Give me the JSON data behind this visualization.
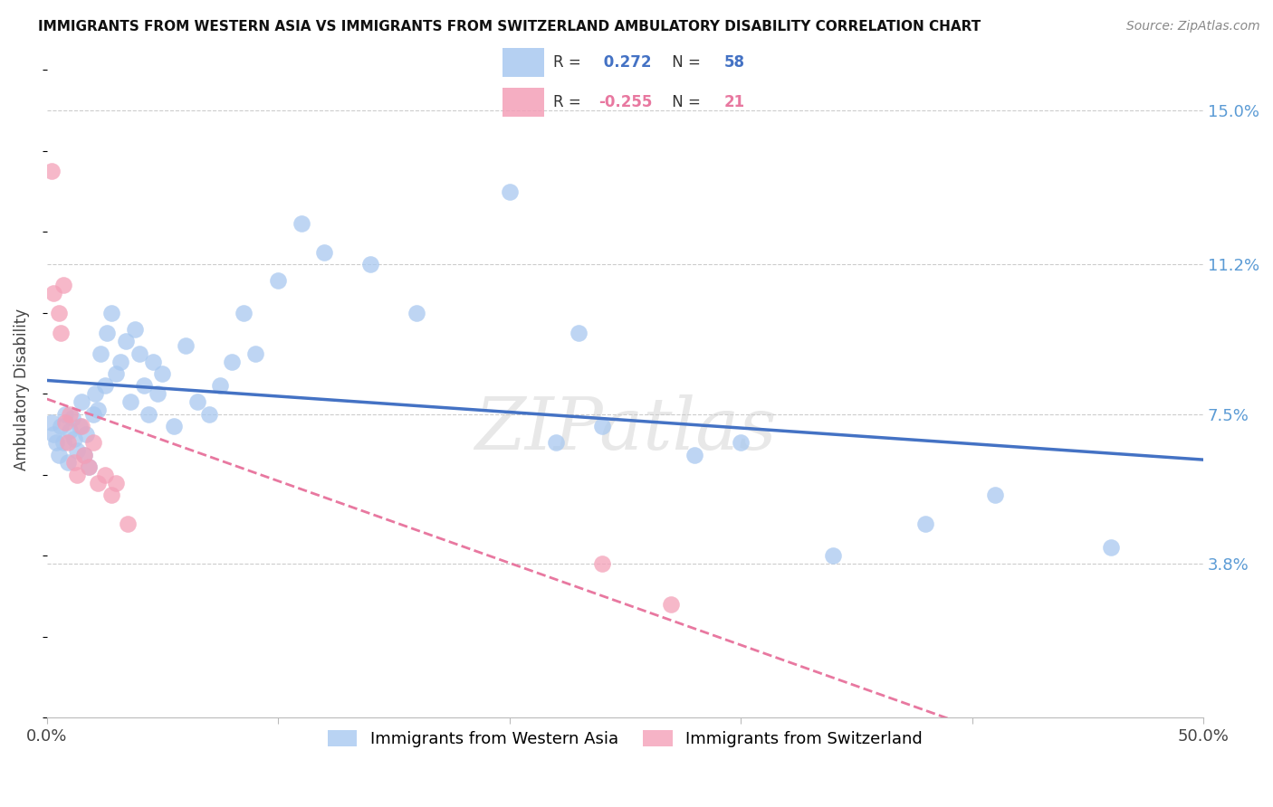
{
  "title": "IMMIGRANTS FROM WESTERN ASIA VS IMMIGRANTS FROM SWITZERLAND AMBULATORY DISABILITY CORRELATION CHART",
  "source": "Source: ZipAtlas.com",
  "ylabel": "Ambulatory Disability",
  "yticks": [
    0.038,
    0.075,
    0.112,
    0.15
  ],
  "ytick_labels": [
    "3.8%",
    "7.5%",
    "11.2%",
    "15.0%"
  ],
  "xmin": 0.0,
  "xmax": 0.5,
  "ymin": 0.0,
  "ymax": 0.162,
  "r_blue": 0.272,
  "n_blue": 58,
  "r_pink": -0.255,
  "n_pink": 21,
  "legend_label_blue": "Immigrants from Western Asia",
  "legend_label_pink": "Immigrants from Switzerland",
  "blue_color": "#A8C8F0",
  "pink_color": "#F4A0B8",
  "line_blue": "#4472C4",
  "line_pink": "#E878A0",
  "watermark": "ZIPatlas",
  "blue_scatter_x": [
    0.002,
    0.003,
    0.004,
    0.005,
    0.006,
    0.007,
    0.008,
    0.009,
    0.01,
    0.011,
    0.012,
    0.013,
    0.014,
    0.015,
    0.016,
    0.017,
    0.018,
    0.02,
    0.021,
    0.022,
    0.023,
    0.025,
    0.026,
    0.028,
    0.03,
    0.032,
    0.034,
    0.036,
    0.038,
    0.04,
    0.042,
    0.044,
    0.046,
    0.048,
    0.05,
    0.055,
    0.06,
    0.065,
    0.07,
    0.075,
    0.08,
    0.085,
    0.09,
    0.1,
    0.11,
    0.12,
    0.14,
    0.16,
    0.2,
    0.22,
    0.24,
    0.28,
    0.3,
    0.34,
    0.38,
    0.41,
    0.46,
    0.23
  ],
  "blue_scatter_y": [
    0.073,
    0.07,
    0.068,
    0.065,
    0.072,
    0.068,
    0.075,
    0.063,
    0.071,
    0.074,
    0.069,
    0.066,
    0.072,
    0.078,
    0.065,
    0.07,
    0.062,
    0.075,
    0.08,
    0.076,
    0.09,
    0.082,
    0.095,
    0.1,
    0.085,
    0.088,
    0.093,
    0.078,
    0.096,
    0.09,
    0.082,
    0.075,
    0.088,
    0.08,
    0.085,
    0.072,
    0.092,
    0.078,
    0.075,
    0.082,
    0.088,
    0.1,
    0.09,
    0.108,
    0.122,
    0.115,
    0.112,
    0.1,
    0.13,
    0.068,
    0.072,
    0.065,
    0.068,
    0.04,
    0.048,
    0.055,
    0.042,
    0.095
  ],
  "pink_scatter_x": [
    0.002,
    0.003,
    0.005,
    0.006,
    0.007,
    0.008,
    0.009,
    0.01,
    0.012,
    0.013,
    0.015,
    0.016,
    0.018,
    0.02,
    0.022,
    0.025,
    0.028,
    0.03,
    0.035,
    0.24,
    0.27
  ],
  "pink_scatter_y": [
    0.135,
    0.105,
    0.1,
    0.095,
    0.107,
    0.073,
    0.068,
    0.075,
    0.063,
    0.06,
    0.072,
    0.065,
    0.062,
    0.068,
    0.058,
    0.06,
    0.055,
    0.058,
    0.048,
    0.038,
    0.028
  ]
}
